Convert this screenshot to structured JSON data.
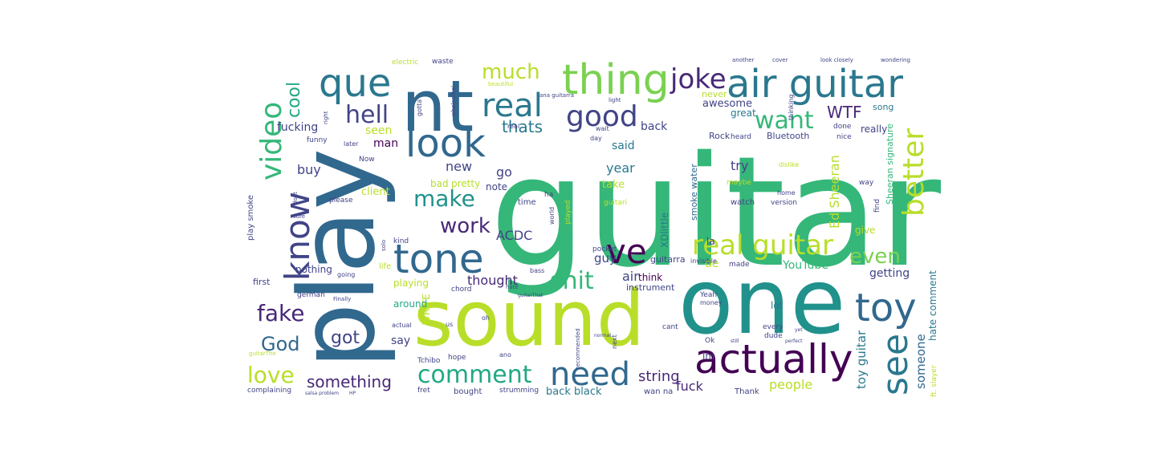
{
  "colors": {
    "c1": "#2a788e",
    "c2": "#22a884",
    "c3": "#b8de29",
    "c4": "#35b779",
    "c5": "#414487",
    "c6": "#440154",
    "c7": "#31688e",
    "c8": "#7ad151",
    "c9": "#21918c",
    "c10": "#482878",
    "c11": "#90d743",
    "c12": "#1f9e89"
  },
  "words": [
    {
      "text": "guitar",
      "color": "c4"
    },
    {
      "text": "play",
      "color": "c7"
    },
    {
      "text": "sound",
      "color": "c3"
    },
    {
      "text": "one",
      "color": "c9"
    },
    {
      "text": "nt",
      "color": "c7"
    },
    {
      "text": "que",
      "color": "c1"
    },
    {
      "text": "thing",
      "color": "c8"
    },
    {
      "text": "air guitar",
      "color": "c1"
    },
    {
      "text": "real",
      "color": "c1"
    },
    {
      "text": "look",
      "color": "c7"
    },
    {
      "text": "tone",
      "color": "c7"
    },
    {
      "text": "know",
      "color": "c5"
    },
    {
      "text": "video",
      "color": "c4"
    },
    {
      "text": "actually",
      "color": "c6"
    },
    {
      "text": "need",
      "color": "c7"
    },
    {
      "text": "toy",
      "color": "c7"
    },
    {
      "text": "see",
      "color": "c1"
    },
    {
      "text": "better",
      "color": "c3"
    },
    {
      "text": "real guitar",
      "color": "c3"
    },
    {
      "text": "comment",
      "color": "c2"
    },
    {
      "text": "ve",
      "color": "c6"
    },
    {
      "text": "make",
      "color": "c9"
    },
    {
      "text": "much",
      "color": "c3"
    },
    {
      "text": "joke",
      "color": "c10"
    },
    {
      "text": "good",
      "color": "c5"
    },
    {
      "text": "want",
      "color": "c4"
    },
    {
      "text": "hell",
      "color": "c5"
    },
    {
      "text": "cool",
      "color": "c2"
    },
    {
      "text": "work",
      "color": "c10"
    },
    {
      "text": "shit",
      "color": "c4"
    },
    {
      "text": "fake",
      "color": "c10"
    },
    {
      "text": "love",
      "color": "c3"
    },
    {
      "text": "God",
      "color": "c7"
    },
    {
      "text": "got",
      "color": "c5"
    },
    {
      "text": "something",
      "color": "c10"
    },
    {
      "text": "even",
      "color": "c8"
    },
    {
      "text": "thats",
      "color": "c1"
    },
    {
      "text": "WTF",
      "color": "c10"
    },
    {
      "text": "fucking",
      "color": "c5"
    },
    {
      "text": "buy",
      "color": "c5"
    },
    {
      "text": "man",
      "color": "c6"
    },
    {
      "text": "seen",
      "color": "c3"
    },
    {
      "text": "new",
      "color": "c5"
    },
    {
      "text": "go",
      "color": "c5"
    },
    {
      "text": "note",
      "color": "c5"
    },
    {
      "text": "year",
      "color": "c1"
    },
    {
      "text": "try",
      "color": "c5"
    },
    {
      "text": "take",
      "color": "c3"
    },
    {
      "text": "back",
      "color": "c5"
    },
    {
      "text": "said",
      "color": "c1"
    },
    {
      "text": "awesome",
      "color": "c5"
    },
    {
      "text": "never",
      "color": "c3"
    },
    {
      "text": "great",
      "color": "c1"
    },
    {
      "text": "song",
      "color": "c1"
    },
    {
      "text": "really",
      "color": "c5"
    },
    {
      "text": "Rock",
      "color": "c5"
    },
    {
      "text": "Bluetooth",
      "color": "c5"
    },
    {
      "text": "Ed Sheeran",
      "color": "c3"
    },
    {
      "text": "Sheeran signature",
      "color": "c4"
    },
    {
      "text": "guy",
      "color": "c5"
    },
    {
      "text": "ACDC",
      "color": "c5"
    },
    {
      "text": "thought",
      "color": "c10"
    },
    {
      "text": "air",
      "color": "c5"
    },
    {
      "text": "think",
      "color": "c6"
    },
    {
      "text": "string",
      "color": "c10"
    },
    {
      "text": "fuck",
      "color": "c10"
    },
    {
      "text": "people",
      "color": "c3"
    },
    {
      "text": "back black",
      "color": "c1"
    },
    {
      "text": "toy guitar",
      "color": "c1"
    },
    {
      "text": "someone",
      "color": "c7"
    },
    {
      "text": "hate comment",
      "color": "c1"
    },
    {
      "text": "getting",
      "color": "c5"
    },
    {
      "text": "YouTube",
      "color": "c4"
    },
    {
      "text": "lol",
      "color": "c1"
    },
    {
      "text": "de",
      "color": "c3"
    },
    {
      "text": "give",
      "color": "c3"
    },
    {
      "text": "la",
      "color": "c5"
    },
    {
      "text": "XDlittle",
      "color": "c1"
    },
    {
      "text": "smoke water",
      "color": "c7"
    },
    {
      "text": "guitarra",
      "color": "c5"
    },
    {
      "text": "instrument",
      "color": "c5"
    },
    {
      "text": "WRITE",
      "color": "c3"
    },
    {
      "text": "playing",
      "color": "c3"
    },
    {
      "text": "say",
      "color": "c5"
    },
    {
      "text": "around",
      "color": "c2"
    },
    {
      "text": "nothing",
      "color": "c5"
    },
    {
      "text": "first",
      "color": "c5"
    },
    {
      "text": "german",
      "color": "c5"
    },
    {
      "text": "play smoke",
      "color": "c5"
    },
    {
      "text": "client",
      "color": "c3"
    },
    {
      "text": "bad",
      "color": "c3"
    },
    {
      "text": "pretty",
      "color": "c3"
    },
    {
      "text": "complaining",
      "color": "c5"
    },
    {
      "text": "bought",
      "color": "c5"
    },
    {
      "text": "strumming",
      "color": "c5"
    },
    {
      "text": "wan na",
      "color": "c5"
    },
    {
      "text": "Thank",
      "color": "c5"
    },
    {
      "text": "fret",
      "color": "c5"
    },
    {
      "text": "chord",
      "color": "c5"
    },
    {
      "text": "Tchibo",
      "color": "c5"
    },
    {
      "text": "hope",
      "color": "c5"
    },
    {
      "text": "im",
      "color": "c5"
    },
    {
      "text": "Ok",
      "color": "c5"
    },
    {
      "text": "Yeah",
      "color": "c5"
    },
    {
      "text": "money",
      "color": "c5"
    },
    {
      "text": "cant",
      "color": "c5"
    },
    {
      "text": "every",
      "color": "c5"
    },
    {
      "text": "dude",
      "color": "c5"
    },
    {
      "text": "made",
      "color": "c5"
    },
    {
      "text": "invisible",
      "color": "c5"
    },
    {
      "text": "time",
      "color": "c5"
    },
    {
      "text": "ha",
      "color": "c5"
    },
    {
      "text": "guitari",
      "color": "c3"
    },
    {
      "text": "played",
      "color": "c3"
    },
    {
      "text": "watch",
      "color": "c5"
    },
    {
      "text": "version",
      "color": "c5"
    },
    {
      "text": "maybe",
      "color": "c3"
    },
    {
      "text": "dislike",
      "color": "c3"
    },
    {
      "text": "home",
      "color": "c5"
    },
    {
      "text": "find",
      "color": "c5"
    },
    {
      "text": "way",
      "color": "c5"
    },
    {
      "text": "nice",
      "color": "c5"
    },
    {
      "text": "heard",
      "color": "c5"
    },
    {
      "text": "done",
      "color": "c5"
    },
    {
      "text": "electric",
      "color": "c3"
    },
    {
      "text": "waste",
      "color": "c5"
    },
    {
      "text": "later",
      "color": "c5"
    },
    {
      "text": "funny",
      "color": "c5"
    },
    {
      "text": "Now",
      "color": "c5"
    },
    {
      "text": "please",
      "color": "c5"
    },
    {
      "text": "kind",
      "color": "c5"
    },
    {
      "text": "life",
      "color": "c3"
    },
    {
      "text": "going",
      "color": "c5"
    },
    {
      "text": "day",
      "color": "c5"
    },
    {
      "text": "wait",
      "color": "c5"
    },
    {
      "text": "pocket",
      "color": "c5"
    },
    {
      "text": "world",
      "color": "c5"
    },
    {
      "text": "bass",
      "color": "c5"
    },
    {
      "text": "actual",
      "color": "c5"
    },
    {
      "text": "us",
      "color": "c5"
    },
    {
      "text": "oh",
      "color": "c5"
    },
    {
      "text": "ano",
      "color": "c5"
    },
    {
      "text": "real",
      "color": "c5"
    },
    {
      "text": "next",
      "color": "c5"
    },
    {
      "text": "recommended",
      "color": "c5"
    },
    {
      "text": "Finally",
      "color": "c5"
    },
    {
      "text": "ft. slayer",
      "color": "c3"
    },
    {
      "text": "another",
      "color": "c5"
    },
    {
      "text": "cover",
      "color": "c5"
    },
    {
      "text": "look closely",
      "color": "c5"
    },
    {
      "text": "wondering",
      "color": "c5"
    },
    {
      "text": "beautiful",
      "color": "c3"
    },
    {
      "text": "ana guitarra",
      "color": "c5"
    },
    {
      "text": "light",
      "color": "c5"
    },
    {
      "text": "thinking",
      "color": "c5"
    },
    {
      "text": "gotta",
      "color": "c5"
    },
    {
      "text": "wholemeal",
      "color": "c5"
    },
    {
      "text": "right",
      "color": "c5"
    },
    {
      "text": "sure",
      "color": "c5"
    },
    {
      "text": "solo",
      "color": "c5"
    },
    {
      "text": "dont",
      "color": "c5"
    },
    {
      "text": "guitarThe",
      "color": "c3"
    },
    {
      "text": "salsa problem",
      "color": "c5"
    },
    {
      "text": "HP",
      "color": "c5"
    },
    {
      "text": "perfect",
      "color": "c5"
    },
    {
      "text": "still",
      "color": "c5"
    },
    {
      "text": "yet",
      "color": "c5"
    },
    {
      "text": "guitarThat",
      "color": "c5"
    },
    {
      "text": "hate",
      "color": "c5"
    },
    {
      "text": "normal",
      "color": "c5"
    }
  ]
}
